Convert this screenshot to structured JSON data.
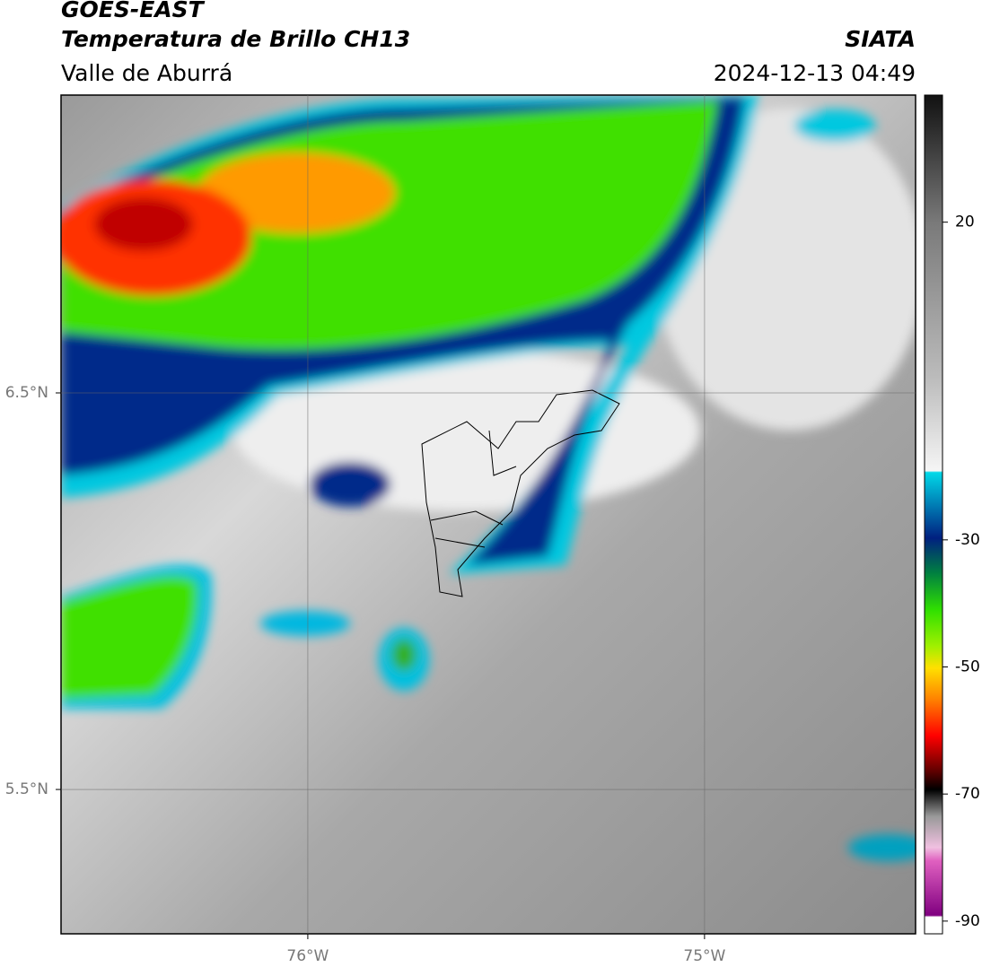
{
  "header": {
    "line1": "GOES-EAST",
    "line2": "Temperatura de Brillo CH13",
    "agency": "SIATA",
    "region": "Valle de Aburrá",
    "timestamp": "2024-12-13 04:49"
  },
  "map": {
    "latlim": [
      5.136,
      7.251
    ],
    "lonlim": [
      -76.622,
      -74.468
    ],
    "lat_ticks": [
      {
        "value": 6.5,
        "label": "6.5°N"
      },
      {
        "value": 5.5,
        "label": "5.5°N"
      }
    ],
    "lon_ticks": [
      {
        "value": -76,
        "label": "76°W"
      },
      {
        "value": -75,
        "label": "75°W"
      }
    ]
  },
  "colorbar": {
    "range": [
      -92,
      40
    ],
    "ticks": [
      20,
      -30,
      -50,
      -70,
      -90
    ]
  }
}
